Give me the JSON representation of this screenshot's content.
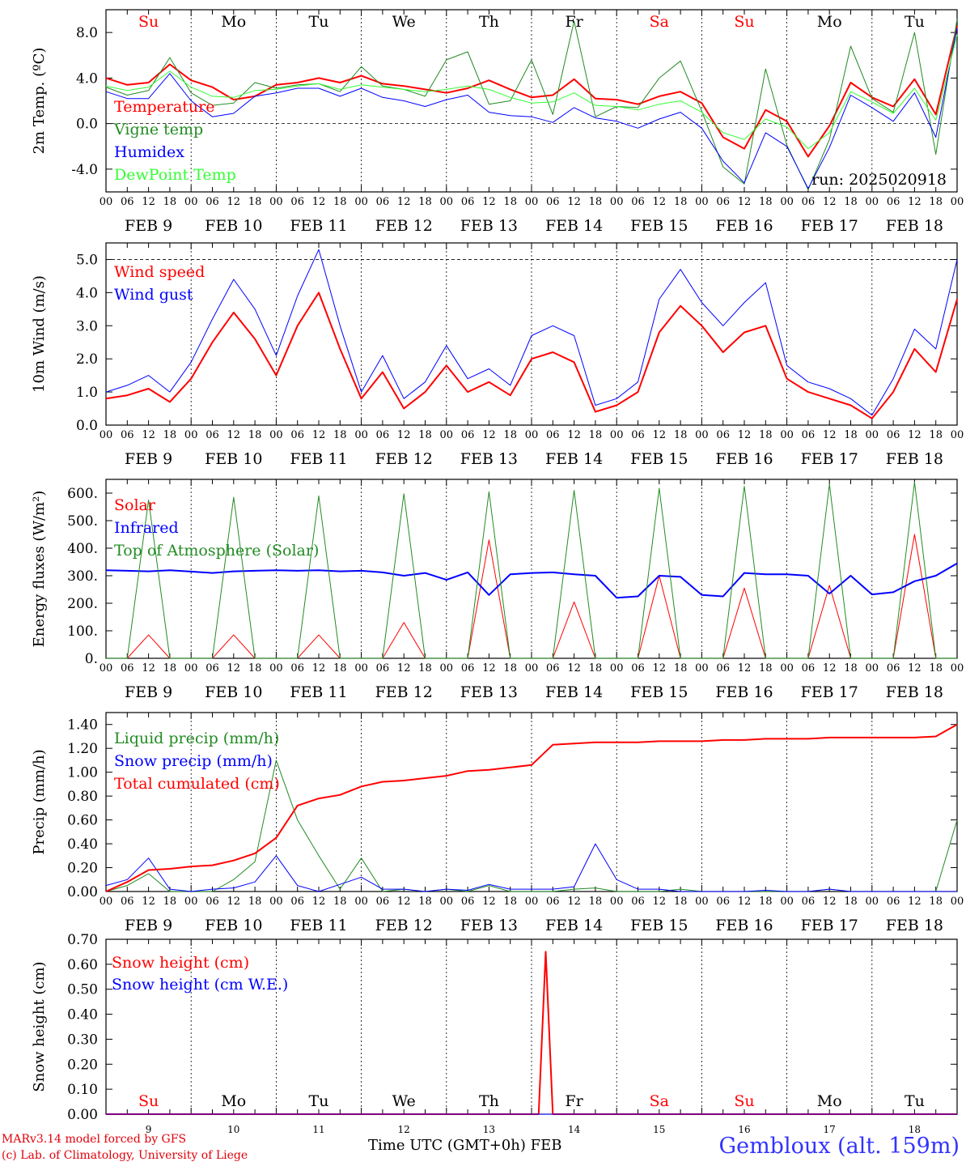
{
  "footer": {
    "model": "MARv3.14 model forced by GFS",
    "lab": "(c) Lab. of Climatology, University of Liege",
    "xlabel": "Time UTC (GMT+0h) FEB",
    "site": "Gembloux (alt. 159m)"
  },
  "colors": {
    "red": "#ff0000",
    "green": "#228b22",
    "blue": "#0000ff",
    "lime": "#33ff33",
    "black": "#000000"
  },
  "chart_data": [
    {
      "type": "line",
      "ylabel": "2m Temp. (ºC)",
      "ylim": [
        -6,
        10
      ],
      "yticks": [
        [
          8,
          "8.0"
        ],
        [
          4,
          "4.0"
        ],
        [
          0,
          "0.0"
        ],
        [
          -4,
          "-4.0"
        ]
      ],
      "refline": 0,
      "day_labels": [
        "Su",
        "Mo",
        "Tu",
        "We",
        "Th",
        "Fr",
        "Sa",
        "Su",
        "Mo",
        "Tu"
      ],
      "day_label_colors": [
        "#ff0000",
        "#000000",
        "#000000",
        "#000000",
        "#000000",
        "#000000",
        "#ff0000",
        "#ff0000",
        "#000000",
        "#000000"
      ],
      "annotation": "run: 2025020918",
      "x_hours": [
        0,
        6,
        12,
        18,
        24,
        30,
        36,
        42,
        48,
        54,
        60,
        66,
        72,
        78,
        84,
        90,
        96,
        102,
        108,
        114,
        120,
        126,
        132,
        138,
        144,
        150,
        156,
        162,
        168,
        174,
        180,
        186,
        192,
        198,
        204,
        210,
        216,
        222,
        228,
        234,
        240
      ],
      "series": [
        {
          "name": "Temperature",
          "color": "#ff0000",
          "width": 2,
          "values": [
            4.0,
            3.4,
            3.6,
            5.2,
            3.8,
            3.2,
            2.1,
            2.4,
            3.4,
            3.6,
            4.0,
            3.6,
            4.2,
            3.5,
            3.3,
            3.0,
            2.7,
            3.1,
            3.8,
            3.0,
            2.3,
            2.5,
            3.9,
            2.2,
            2.1,
            1.7,
            2.4,
            2.8,
            1.8,
            -1.2,
            -2.2,
            1.2,
            0.2,
            -2.9,
            -0.2,
            3.6,
            2.3,
            1.5,
            3.9,
            0.8,
            8.6
          ]
        },
        {
          "name": "Vigne temp",
          "color": "#228b22",
          "width": 1,
          "values": [
            3.2,
            2.5,
            2.9,
            5.8,
            2.7,
            1.6,
            1.8,
            3.6,
            3.1,
            3.4,
            3.5,
            2.8,
            5.0,
            3.3,
            3.0,
            2.4,
            5.6,
            6.3,
            1.7,
            2.0,
            5.6,
            0.8,
            9.0,
            0.6,
            1.5,
            1.4,
            4.0,
            5.5,
            1.1,
            -3.8,
            -5.3,
            4.8,
            -1.9,
            -5.8,
            -1.4,
            6.8,
            2.2,
            1.0,
            8.0,
            -2.7,
            9.2
          ]
        },
        {
          "name": "Humidex",
          "color": "#0000ff",
          "width": 1,
          "values": [
            2.8,
            2.2,
            2.2,
            4.4,
            2.0,
            0.6,
            0.9,
            2.4,
            2.7,
            3.1,
            3.1,
            2.4,
            3.1,
            2.3,
            2.0,
            1.5,
            2.1,
            2.5,
            1.0,
            0.7,
            0.6,
            0.1,
            1.4,
            0.5,
            0.2,
            -0.4,
            0.4,
            1.0,
            -0.4,
            -3.3,
            -5.2,
            -0.8,
            -2.0,
            -5.7,
            -2.1,
            2.5,
            1.4,
            0.2,
            2.7,
            -1.2,
            8.4
          ]
        },
        {
          "name": "DewPoint Temp",
          "color": "#33ff33",
          "width": 1,
          "values": [
            3.3,
            2.9,
            3.2,
            4.6,
            3.2,
            2.4,
            2.3,
            2.9,
            3.0,
            3.3,
            3.5,
            3.0,
            3.4,
            3.2,
            3.0,
            2.8,
            3.0,
            3.3,
            3.0,
            2.3,
            1.8,
            1.9,
            2.7,
            1.6,
            1.5,
            1.2,
            1.7,
            2.0,
            1.0,
            -0.8,
            -1.4,
            0.4,
            -0.3,
            -2.2,
            -0.8,
            2.8,
            1.9,
            0.9,
            3.1,
            0.3,
            7.8
          ]
        }
      ]
    },
    {
      "type": "line",
      "ylabel": "10m Wind (m/s)",
      "ylim": [
        0,
        5.5
      ],
      "yticks": [
        [
          0,
          "0.0"
        ],
        [
          1,
          "1.0"
        ],
        [
          2,
          "2.0"
        ],
        [
          3,
          "3.0"
        ],
        [
          4,
          "4.0"
        ],
        [
          5,
          "5.0"
        ]
      ],
      "refline": 5,
      "x_hours": [
        0,
        6,
        12,
        18,
        24,
        30,
        36,
        42,
        48,
        54,
        60,
        66,
        72,
        78,
        84,
        90,
        96,
        102,
        108,
        114,
        120,
        126,
        132,
        138,
        144,
        150,
        156,
        162,
        168,
        174,
        180,
        186,
        192,
        198,
        204,
        210,
        216,
        222,
        228,
        234,
        240
      ],
      "series": [
        {
          "name": "Wind speed",
          "color": "#ff0000",
          "width": 2,
          "values": [
            0.8,
            0.9,
            1.1,
            0.7,
            1.4,
            2.5,
            3.4,
            2.6,
            1.5,
            3.0,
            4.0,
            2.3,
            0.8,
            1.6,
            0.5,
            1.0,
            1.8,
            1.0,
            1.3,
            0.9,
            2.0,
            2.2,
            1.9,
            0.4,
            0.6,
            1.0,
            2.8,
            3.6,
            3.0,
            2.2,
            2.8,
            3.0,
            1.4,
            1.0,
            0.8,
            0.6,
            0.2,
            1.0,
            2.3,
            1.6,
            3.8
          ]
        },
        {
          "name": "Wind gust",
          "color": "#0000ff",
          "width": 1,
          "values": [
            1.0,
            1.2,
            1.5,
            1.0,
            1.9,
            3.2,
            4.4,
            3.5,
            2.1,
            3.9,
            5.3,
            3.0,
            1.0,
            2.1,
            0.8,
            1.3,
            2.4,
            1.4,
            1.7,
            1.2,
            2.7,
            3.0,
            2.7,
            0.6,
            0.8,
            1.3,
            3.8,
            4.7,
            3.7,
            3.0,
            3.7,
            4.3,
            1.8,
            1.3,
            1.1,
            0.8,
            0.3,
            1.4,
            2.9,
            2.3,
            5.0
          ]
        }
      ]
    },
    {
      "type": "line",
      "ylabel": "Energy fluxes (W/m²)",
      "ylim": [
        0,
        650
      ],
      "yticks": [
        [
          0,
          "0."
        ],
        [
          100,
          "100."
        ],
        [
          200,
          "200."
        ],
        [
          300,
          "300."
        ],
        [
          400,
          "400."
        ],
        [
          500,
          "500."
        ],
        [
          600,
          "600."
        ]
      ],
      "x_hours": [
        0,
        6,
        12,
        18,
        24,
        30,
        36,
        42,
        48,
        54,
        60,
        66,
        72,
        78,
        84,
        90,
        96,
        102,
        108,
        114,
        120,
        126,
        132,
        138,
        144,
        150,
        156,
        162,
        168,
        174,
        180,
        186,
        192,
        198,
        204,
        210,
        216,
        222,
        228,
        234,
        240
      ],
      "series": [
        {
          "name": "Solar",
          "color": "#ff0000",
          "width": 1,
          "values": [
            0,
            0,
            85,
            0,
            0,
            0,
            85,
            0,
            0,
            0,
            85,
            0,
            0,
            0,
            130,
            0,
            0,
            0,
            430,
            0,
            0,
            0,
            205,
            0,
            0,
            0,
            300,
            0,
            0,
            0,
            255,
            0,
            0,
            0,
            265,
            0,
            0,
            0,
            450,
            0,
            0
          ]
        },
        {
          "name": "Infrared",
          "color": "#0000ff",
          "width": 2,
          "values": [
            320,
            318,
            316,
            320,
            315,
            310,
            316,
            318,
            320,
            318,
            320,
            316,
            318,
            312,
            300,
            310,
            285,
            312,
            230,
            305,
            310,
            312,
            305,
            300,
            220,
            225,
            300,
            296,
            230,
            225,
            310,
            305,
            305,
            300,
            235,
            300,
            232,
            240,
            280,
            300,
            345
          ]
        },
        {
          "name": "Top of Atmosphere (Solar)",
          "color": "#228b22",
          "width": 1,
          "values": [
            0,
            0,
            575,
            0,
            0,
            0,
            585,
            0,
            0,
            0,
            590,
            0,
            0,
            0,
            598,
            0,
            0,
            0,
            605,
            0,
            0,
            0,
            610,
            0,
            0,
            0,
            618,
            0,
            0,
            0,
            625,
            0,
            0,
            0,
            632,
            0,
            0,
            0,
            640,
            0,
            0
          ]
        }
      ]
    },
    {
      "type": "line",
      "ylabel": "Precip (mm/h)",
      "ylim": [
        0,
        1.5
      ],
      "yticks": [
        [
          0,
          "0.00"
        ],
        [
          0.2,
          "0.20"
        ],
        [
          0.4,
          "0.40"
        ],
        [
          0.6,
          "0.60"
        ],
        [
          0.8,
          "0.80"
        ],
        [
          1.0,
          "1.00"
        ],
        [
          1.2,
          "1.20"
        ],
        [
          1.4,
          "1.40"
        ]
      ],
      "x_hours": [
        0,
        6,
        12,
        18,
        24,
        30,
        36,
        42,
        48,
        54,
        60,
        66,
        72,
        78,
        84,
        90,
        96,
        102,
        108,
        114,
        120,
        126,
        132,
        138,
        144,
        150,
        156,
        162,
        168,
        174,
        180,
        186,
        192,
        198,
        204,
        210,
        216,
        222,
        228,
        234,
        240
      ],
      "series": [
        {
          "name": "Liquid precip (mm/h)",
          "color": "#228b22",
          "width": 1,
          "values": [
            0.0,
            0.05,
            0.15,
            0.0,
            0.0,
            0.0,
            0.1,
            0.25,
            1.1,
            0.6,
            0.3,
            0.02,
            0.28,
            0.0,
            0.02,
            0.0,
            0.02,
            0.0,
            0.05,
            0.0,
            0.0,
            0.0,
            0.02,
            0.03,
            0.0,
            0.0,
            0.0,
            0.02,
            0.0,
            0.0,
            0.0,
            0.0,
            0.0,
            0.0,
            0.02,
            0.0,
            0.0,
            0.0,
            0.0,
            0.0,
            0.6
          ]
        },
        {
          "name": "Snow precip (mm/h)",
          "color": "#0000ff",
          "width": 1,
          "values": [
            0.05,
            0.1,
            0.28,
            0.02,
            0.0,
            0.02,
            0.03,
            0.08,
            0.3,
            0.05,
            0.0,
            0.06,
            0.12,
            0.02,
            0.02,
            0.0,
            0.02,
            0.01,
            0.06,
            0.02,
            0.02,
            0.02,
            0.04,
            0.4,
            0.1,
            0.02,
            0.02,
            0.0,
            0.0,
            0.0,
            0.0,
            0.01,
            0.0,
            0.0,
            0.02,
            0.0,
            0.0,
            0.0,
            0.0,
            0.0,
            0.0
          ]
        },
        {
          "name": "Total cumulated (cm)",
          "color": "#ff0000",
          "width": 2,
          "values": [
            0.0,
            0.08,
            0.18,
            0.19,
            0.21,
            0.22,
            0.26,
            0.32,
            0.45,
            0.72,
            0.78,
            0.81,
            0.88,
            0.92,
            0.93,
            0.95,
            0.97,
            1.01,
            1.02,
            1.04,
            1.06,
            1.23,
            1.24,
            1.25,
            1.25,
            1.25,
            1.26,
            1.26,
            1.26,
            1.27,
            1.27,
            1.28,
            1.28,
            1.28,
            1.29,
            1.29,
            1.29,
            1.29,
            1.29,
            1.3,
            1.4
          ]
        }
      ]
    },
    {
      "type": "line",
      "ylabel": "Snow height (cm)",
      "ylim": [
        0,
        0.7
      ],
      "yticks": [
        [
          0,
          "0.00"
        ],
        [
          0.1,
          "0.10"
        ],
        [
          0.2,
          "0.20"
        ],
        [
          0.3,
          "0.30"
        ],
        [
          0.4,
          "0.40"
        ],
        [
          0.5,
          "0.50"
        ],
        [
          0.6,
          "0.60"
        ],
        [
          0.7,
          "0.70"
        ]
      ],
      "day_labels": [
        "Su",
        "Mo",
        "Tu",
        "We",
        "Th",
        "Fr",
        "Sa",
        "Su",
        "Mo",
        "Tu"
      ],
      "day_label_colors": [
        "#ff0000",
        "#000000",
        "#000000",
        "#000000",
        "#000000",
        "#000000",
        "#ff0000",
        "#ff0000",
        "#000000",
        "#000000"
      ],
      "x_hours": [
        0,
        120,
        122,
        124,
        126,
        128,
        240
      ],
      "series": [
        {
          "name": "Snow height (cm)",
          "color": "#ff0000",
          "width": 2,
          "values": [
            0,
            0,
            0,
            0.65,
            0,
            0,
            0
          ]
        },
        {
          "name": "Snow height (cm W.E.)",
          "color": "#0000ff",
          "width": 1,
          "values": [
            0,
            0,
            0,
            0,
            0,
            0,
            0
          ]
        }
      ]
    }
  ],
  "x_axis": {
    "hour_labels": [
      "00",
      "06",
      "12",
      "18"
    ],
    "end_label": "00",
    "day_labels": [
      "FEB  9",
      "FEB 10",
      "FEB 11",
      "FEB 12",
      "FEB 13",
      "FEB 14",
      "FEB 15",
      "FEB 16",
      "FEB 17",
      "FEB 18"
    ],
    "bottom_day_numbers": [
      "9",
      "10",
      "11",
      "12",
      "13",
      "14",
      "15",
      "16",
      "17",
      "18"
    ]
  }
}
